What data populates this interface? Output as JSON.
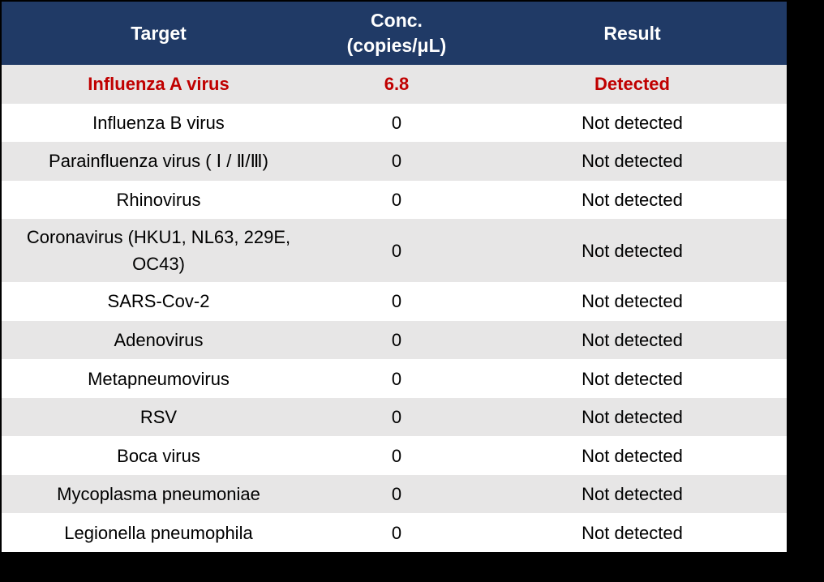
{
  "table": {
    "header": {
      "target": "Target",
      "conc_line1": "Conc.",
      "conc_line2": "(copies/μL)",
      "result": "Result"
    },
    "rows": [
      {
        "target": "Influenza A virus",
        "conc": "6.8",
        "result": "Detected",
        "highlight": true
      },
      {
        "target": "Influenza B virus",
        "conc": "0",
        "result": "Not detected"
      },
      {
        "target": "Parainfluenza virus ( Ⅰ / Ⅱ/Ⅲ)",
        "conc": "0",
        "result": "Not detected"
      },
      {
        "target": "Rhinovirus",
        "conc": "0",
        "result": "Not detected"
      },
      {
        "target": "Coronavirus (HKU1, NL63, 229E, OC43)",
        "conc": "0",
        "result": "Not detected",
        "tall": true
      },
      {
        "target": "SARS-Cov-2",
        "conc": "0",
        "result": "Not detected"
      },
      {
        "target": "Adenovirus",
        "conc": "0",
        "result": "Not detected"
      },
      {
        "target": "Metapneumovirus",
        "conc": "0",
        "result": "Not detected"
      },
      {
        "target": "RSV",
        "conc": "0",
        "result": "Not detected"
      },
      {
        "target": "Boca virus",
        "conc": "0",
        "result": "Not detected"
      },
      {
        "target": "Mycoplasma pneumoniae",
        "conc": "0",
        "result": "Not detected"
      },
      {
        "target": "Legionella pneumophila",
        "conc": "0",
        "result": "Not detected"
      }
    ],
    "colors": {
      "canvas_bg": "#000000",
      "header_bg": "#203A66",
      "header_text": "#FFFFFF",
      "row_bg": "#FFFFFF",
      "row_alt_bg": "#E7E6E6",
      "body_text": "#000000",
      "highlight_text": "#C00000"
    }
  },
  "chart_data": {
    "type": "table",
    "title": "",
    "columns": [
      "Target",
      "Conc. (copies/μL)",
      "Result"
    ],
    "rows": [
      [
        "Influenza A virus",
        6.8,
        "Detected"
      ],
      [
        "Influenza B virus",
        0,
        "Not detected"
      ],
      [
        "Parainfluenza virus ( Ⅰ / Ⅱ/Ⅲ)",
        0,
        "Not detected"
      ],
      [
        "Rhinovirus",
        0,
        "Not detected"
      ],
      [
        "Coronavirus (HKU1, NL63, 229E, OC43)",
        0,
        "Not detected"
      ],
      [
        "SARS-Cov-2",
        0,
        "Not detected"
      ],
      [
        "Adenovirus",
        0,
        "Not detected"
      ],
      [
        "Metapneumovirus",
        0,
        "Not detected"
      ],
      [
        "RSV",
        0,
        "Not detected"
      ],
      [
        "Boca virus",
        0,
        "Not detected"
      ],
      [
        "Mycoplasma pneumoniae",
        0,
        "Not detected"
      ],
      [
        "Legionella pneumophila",
        0,
        "Not detected"
      ]
    ],
    "layout_hints": {
      "zebra_striping": true,
      "first_data_row_highlighted": true,
      "header_style": "dark-navy, white bold text",
      "cell_alignment": "center"
    }
  }
}
